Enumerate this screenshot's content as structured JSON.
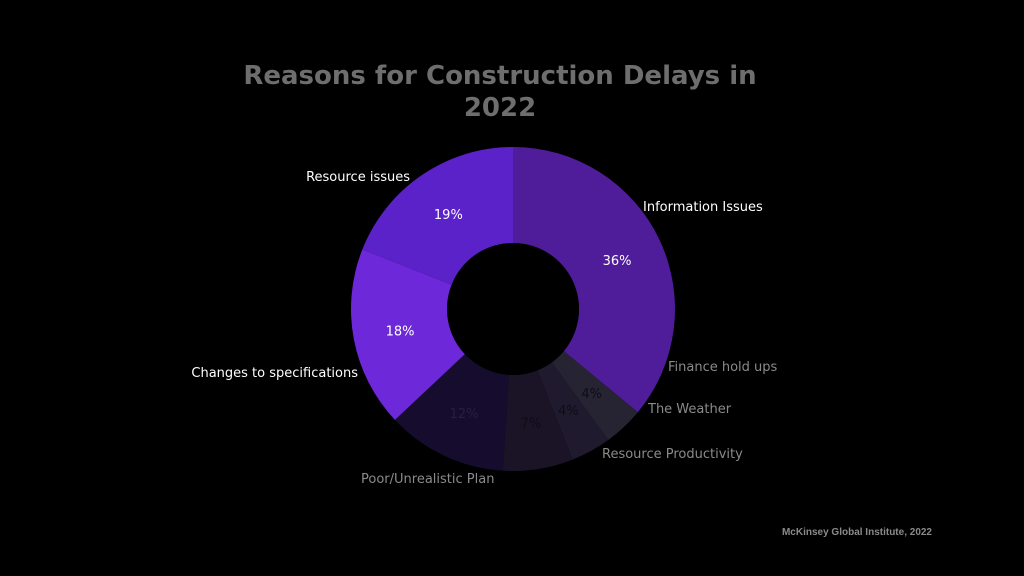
{
  "chart_data": {
    "type": "pie",
    "variant": "donut",
    "title_lines": [
      "Reasons for Construction Delays in",
      "2022"
    ],
    "slices": [
      {
        "label": "Information Issues",
        "value": 36,
        "display": "36%",
        "color": "#4f1d99",
        "label_color": "#ffffff",
        "pct_color": "#ffffff"
      },
      {
        "label": "Finance hold ups",
        "value": 4,
        "display": "4%",
        "color": "#262433",
        "label_color": "#8a8a8a",
        "pct_color": "#0d0d14"
      },
      {
        "label": "The Weather",
        "value": 4,
        "display": "4%",
        "color": "#1f1a2e",
        "label_color": "#8a8a8a",
        "pct_color": "#0d0d14"
      },
      {
        "label": "Resource Productivity",
        "value": 7,
        "display": "7%",
        "color": "#1a1426",
        "label_color": "#8a8a8a",
        "pct_color": "#0d0d14"
      },
      {
        "label": "Poor/Unrealistic Plan",
        "value": 12,
        "display": "12%",
        "color": "#160d2e",
        "label_color": "#8a8a8a",
        "pct_color": "#2a1d45"
      },
      {
        "label": "Changes to specifications",
        "value": 18,
        "display": "18%",
        "color": "#6c28d9",
        "label_color": "#ffffff",
        "pct_color": "#ffffff"
      },
      {
        "label": "Resource issues",
        "value": 19,
        "display": "19%",
        "color": "#5a22c8",
        "label_color": "#ffffff",
        "pct_color": "#ffffff"
      }
    ],
    "source": "McKinsey Global Institute, 2022"
  }
}
